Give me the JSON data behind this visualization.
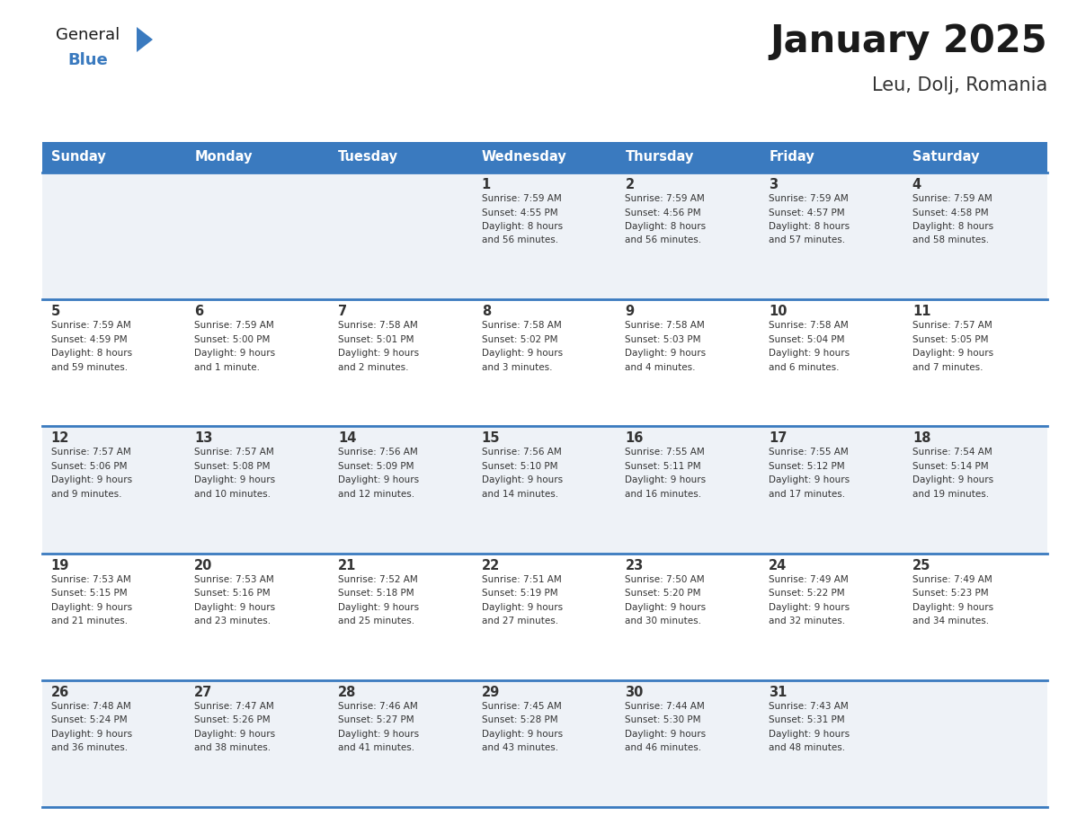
{
  "title": "January 2025",
  "subtitle": "Leu, Dolj, Romania",
  "days_of_week": [
    "Sunday",
    "Monday",
    "Tuesday",
    "Wednesday",
    "Thursday",
    "Friday",
    "Saturday"
  ],
  "header_bg_color": "#3a7abf",
  "header_text_color": "#ffffff",
  "cell_bg_even": "#eef2f7",
  "cell_bg_odd": "#ffffff",
  "row_line_color": "#3a7abf",
  "title_color": "#1a1a1a",
  "subtitle_color": "#333333",
  "day_number_color": "#333333",
  "cell_text_color": "#333333",
  "logo_general_color": "#1a1a1a",
  "logo_blue_color": "#3a7abf",
  "calendar": [
    [
      {
        "day": "",
        "sunrise": "",
        "sunset": "",
        "daylight": ""
      },
      {
        "day": "",
        "sunrise": "",
        "sunset": "",
        "daylight": ""
      },
      {
        "day": "",
        "sunrise": "",
        "sunset": "",
        "daylight": ""
      },
      {
        "day": "1",
        "sunrise": "Sunrise: 7:59 AM",
        "sunset": "Sunset: 4:55 PM",
        "daylight": "Daylight: 8 hours\nand 56 minutes."
      },
      {
        "day": "2",
        "sunrise": "Sunrise: 7:59 AM",
        "sunset": "Sunset: 4:56 PM",
        "daylight": "Daylight: 8 hours\nand 56 minutes."
      },
      {
        "day": "3",
        "sunrise": "Sunrise: 7:59 AM",
        "sunset": "Sunset: 4:57 PM",
        "daylight": "Daylight: 8 hours\nand 57 minutes."
      },
      {
        "day": "4",
        "sunrise": "Sunrise: 7:59 AM",
        "sunset": "Sunset: 4:58 PM",
        "daylight": "Daylight: 8 hours\nand 58 minutes."
      }
    ],
    [
      {
        "day": "5",
        "sunrise": "Sunrise: 7:59 AM",
        "sunset": "Sunset: 4:59 PM",
        "daylight": "Daylight: 8 hours\nand 59 minutes."
      },
      {
        "day": "6",
        "sunrise": "Sunrise: 7:59 AM",
        "sunset": "Sunset: 5:00 PM",
        "daylight": "Daylight: 9 hours\nand 1 minute."
      },
      {
        "day": "7",
        "sunrise": "Sunrise: 7:58 AM",
        "sunset": "Sunset: 5:01 PM",
        "daylight": "Daylight: 9 hours\nand 2 minutes."
      },
      {
        "day": "8",
        "sunrise": "Sunrise: 7:58 AM",
        "sunset": "Sunset: 5:02 PM",
        "daylight": "Daylight: 9 hours\nand 3 minutes."
      },
      {
        "day": "9",
        "sunrise": "Sunrise: 7:58 AM",
        "sunset": "Sunset: 5:03 PM",
        "daylight": "Daylight: 9 hours\nand 4 minutes."
      },
      {
        "day": "10",
        "sunrise": "Sunrise: 7:58 AM",
        "sunset": "Sunset: 5:04 PM",
        "daylight": "Daylight: 9 hours\nand 6 minutes."
      },
      {
        "day": "11",
        "sunrise": "Sunrise: 7:57 AM",
        "sunset": "Sunset: 5:05 PM",
        "daylight": "Daylight: 9 hours\nand 7 minutes."
      }
    ],
    [
      {
        "day": "12",
        "sunrise": "Sunrise: 7:57 AM",
        "sunset": "Sunset: 5:06 PM",
        "daylight": "Daylight: 9 hours\nand 9 minutes."
      },
      {
        "day": "13",
        "sunrise": "Sunrise: 7:57 AM",
        "sunset": "Sunset: 5:08 PM",
        "daylight": "Daylight: 9 hours\nand 10 minutes."
      },
      {
        "day": "14",
        "sunrise": "Sunrise: 7:56 AM",
        "sunset": "Sunset: 5:09 PM",
        "daylight": "Daylight: 9 hours\nand 12 minutes."
      },
      {
        "day": "15",
        "sunrise": "Sunrise: 7:56 AM",
        "sunset": "Sunset: 5:10 PM",
        "daylight": "Daylight: 9 hours\nand 14 minutes."
      },
      {
        "day": "16",
        "sunrise": "Sunrise: 7:55 AM",
        "sunset": "Sunset: 5:11 PM",
        "daylight": "Daylight: 9 hours\nand 16 minutes."
      },
      {
        "day": "17",
        "sunrise": "Sunrise: 7:55 AM",
        "sunset": "Sunset: 5:12 PM",
        "daylight": "Daylight: 9 hours\nand 17 minutes."
      },
      {
        "day": "18",
        "sunrise": "Sunrise: 7:54 AM",
        "sunset": "Sunset: 5:14 PM",
        "daylight": "Daylight: 9 hours\nand 19 minutes."
      }
    ],
    [
      {
        "day": "19",
        "sunrise": "Sunrise: 7:53 AM",
        "sunset": "Sunset: 5:15 PM",
        "daylight": "Daylight: 9 hours\nand 21 minutes."
      },
      {
        "day": "20",
        "sunrise": "Sunrise: 7:53 AM",
        "sunset": "Sunset: 5:16 PM",
        "daylight": "Daylight: 9 hours\nand 23 minutes."
      },
      {
        "day": "21",
        "sunrise": "Sunrise: 7:52 AM",
        "sunset": "Sunset: 5:18 PM",
        "daylight": "Daylight: 9 hours\nand 25 minutes."
      },
      {
        "day": "22",
        "sunrise": "Sunrise: 7:51 AM",
        "sunset": "Sunset: 5:19 PM",
        "daylight": "Daylight: 9 hours\nand 27 minutes."
      },
      {
        "day": "23",
        "sunrise": "Sunrise: 7:50 AM",
        "sunset": "Sunset: 5:20 PM",
        "daylight": "Daylight: 9 hours\nand 30 minutes."
      },
      {
        "day": "24",
        "sunrise": "Sunrise: 7:49 AM",
        "sunset": "Sunset: 5:22 PM",
        "daylight": "Daylight: 9 hours\nand 32 minutes."
      },
      {
        "day": "25",
        "sunrise": "Sunrise: 7:49 AM",
        "sunset": "Sunset: 5:23 PM",
        "daylight": "Daylight: 9 hours\nand 34 minutes."
      }
    ],
    [
      {
        "day": "26",
        "sunrise": "Sunrise: 7:48 AM",
        "sunset": "Sunset: 5:24 PM",
        "daylight": "Daylight: 9 hours\nand 36 minutes."
      },
      {
        "day": "27",
        "sunrise": "Sunrise: 7:47 AM",
        "sunset": "Sunset: 5:26 PM",
        "daylight": "Daylight: 9 hours\nand 38 minutes."
      },
      {
        "day": "28",
        "sunrise": "Sunrise: 7:46 AM",
        "sunset": "Sunset: 5:27 PM",
        "daylight": "Daylight: 9 hours\nand 41 minutes."
      },
      {
        "day": "29",
        "sunrise": "Sunrise: 7:45 AM",
        "sunset": "Sunset: 5:28 PM",
        "daylight": "Daylight: 9 hours\nand 43 minutes."
      },
      {
        "day": "30",
        "sunrise": "Sunrise: 7:44 AM",
        "sunset": "Sunset: 5:30 PM",
        "daylight": "Daylight: 9 hours\nand 46 minutes."
      },
      {
        "day": "31",
        "sunrise": "Sunrise: 7:43 AM",
        "sunset": "Sunset: 5:31 PM",
        "daylight": "Daylight: 9 hours\nand 48 minutes."
      },
      {
        "day": "",
        "sunrise": "",
        "sunset": "",
        "daylight": ""
      }
    ]
  ]
}
